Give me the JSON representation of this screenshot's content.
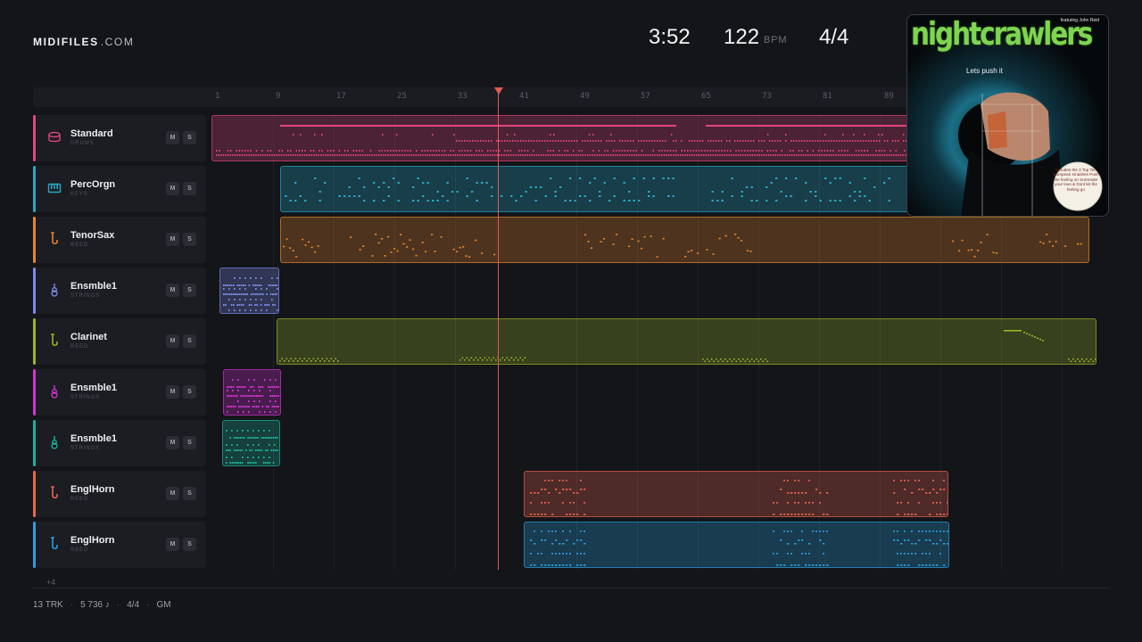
{
  "header": {
    "logo_bold": "MIDIFILES",
    "logo_domain": ".COM",
    "time": "3:52",
    "tempo": "122",
    "tempo_unit": "BPM",
    "time_signature": "4/4"
  },
  "ruler": {
    "ticks": [
      "1",
      "9",
      "17",
      "25",
      "33",
      "41",
      "49",
      "57",
      "65",
      "73",
      "81",
      "89"
    ]
  },
  "tracks": [
    {
      "name": "Standard",
      "category": "DRUMS",
      "color": "#e2467e",
      "icon": "drum-icon"
    },
    {
      "name": "PercOrgn",
      "category": "KEYS",
      "color": "#27a9c4",
      "icon": "keyboard-icon"
    },
    {
      "name": "TenorSax",
      "category": "REED",
      "color": "#e8852a",
      "icon": "saxophone-icon"
    },
    {
      "name": "Ensmble1",
      "category": "STRINGS",
      "color": "#7d8ce8",
      "icon": "violin-icon"
    },
    {
      "name": "Clarinet",
      "category": "REED",
      "color": "#9bb52a",
      "icon": "clarinet-icon"
    },
    {
      "name": "Ensmble1",
      "category": "STRINGS",
      "color": "#d434d4",
      "icon": "violin-icon"
    },
    {
      "name": "Ensmble1",
      "category": "STRINGS",
      "color": "#1fb09a",
      "icon": "violin-icon"
    },
    {
      "name": "EnglHorn",
      "category": "REED",
      "color": "#e8664f",
      "icon": "horn-icon"
    },
    {
      "name": "EnglHorn",
      "category": "REED",
      "color": "#2ba0e0",
      "icon": "horn-icon"
    }
  ],
  "buttons": {
    "mute": "M",
    "solo": "S"
  },
  "more_tracks": "+4",
  "footer": {
    "tracks": "13 TRK",
    "notes": "5 736 ♪",
    "signature": "4/4",
    "standard": "GM"
  },
  "cover": {
    "title": "nightcrawlers",
    "featuring": "featuring John Reid",
    "tagline": "Lets push it",
    "blurb": "Includes the 3 Top Ten European smashes Push the feeling on Surrender your love & Dont let the feeling go"
  }
}
